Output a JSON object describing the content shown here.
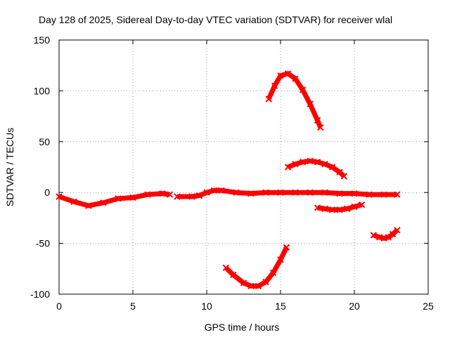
{
  "chart_data": {
    "type": "scatter",
    "title": "Day 128 of 2025, Sidereal Day-to-day VTEC variation (SDTVAR) for receiver wlal",
    "xlabel": "GPS time / hours",
    "ylabel": "SDTVAR / TECUs",
    "xlim": [
      0,
      25
    ],
    "ylim": [
      -100,
      150
    ],
    "xticks": [
      "0",
      "5",
      "10",
      "15",
      "20",
      "25"
    ],
    "yticks": [
      "150",
      "100",
      "50",
      "0",
      "-50",
      "-100"
    ],
    "grid": true,
    "color": "#ff0000",
    "series": [
      {
        "name": "seg1",
        "x": [
          0,
          1,
          2,
          3,
          4,
          5,
          6,
          7,
          7.5
        ],
        "y": [
          -4,
          -9,
          -13,
          -10,
          -6,
          -5,
          -2,
          -1,
          -2
        ]
      },
      {
        "name": "seg2",
        "x": [
          8,
          9,
          9.5,
          10,
          10.5,
          11,
          12,
          13,
          14,
          15,
          16,
          17,
          18,
          19,
          20,
          21,
          22,
          22.9
        ],
        "y": [
          -4,
          -4,
          -3,
          0,
          2,
          2,
          0,
          -1,
          0,
          0,
          0,
          0,
          0,
          -1,
          -1,
          -2,
          -2,
          -2
        ]
      },
      {
        "name": "seg3",
        "x": [
          14.2,
          14.6,
          15,
          15.5,
          16,
          16.5,
          17,
          17.5,
          17.7
        ],
        "y": [
          92,
          105,
          115,
          117,
          112,
          101,
          87,
          71,
          64
        ]
      },
      {
        "name": "seg4",
        "x": [
          15.5,
          16,
          16.5,
          17,
          17.5,
          18,
          18.5,
          19,
          19.3
        ],
        "y": [
          25,
          28,
          30,
          31,
          30,
          28,
          25,
          20,
          16
        ]
      },
      {
        "name": "seg5",
        "x": [
          17.5,
          18,
          18.5,
          19,
          19.5,
          20,
          20.5
        ],
        "y": [
          -15,
          -16,
          -17,
          -17,
          -16,
          -14,
          -12
        ]
      },
      {
        "name": "seg6",
        "x": [
          21.3,
          21.7,
          22,
          22.3,
          22.6,
          22.9
        ],
        "y": [
          -42,
          -44,
          -45,
          -44,
          -41,
          -37
        ]
      },
      {
        "name": "seg7",
        "x": [
          11.3,
          11.8,
          12.5,
          13,
          13.5,
          14,
          14.5,
          15,
          15.4
        ],
        "y": [
          -74,
          -81,
          -89,
          -92,
          -92,
          -88,
          -79,
          -66,
          -54
        ]
      }
    ]
  }
}
